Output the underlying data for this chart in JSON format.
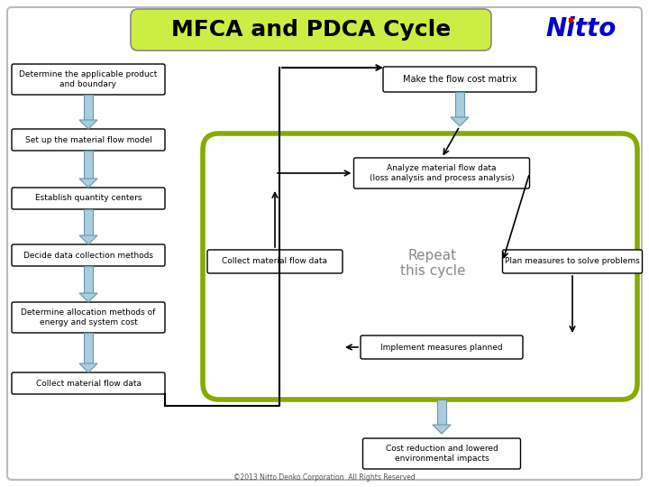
{
  "title": "MFCA and PDCA Cycle",
  "title_bg": "#ccee44",
  "title_fg": "#000000",
  "title_fontsize": 18,
  "bg_color": "#ffffff",
  "box_fill": "#ffffff",
  "box_border": "#000000",
  "arrow_fill": "#aaccdd",
  "arrow_edge": "#6699aa",
  "cycle_border": "#88aa00",
  "cycle_fill": "#ffffff",
  "left_boxes": [
    "Determine the applicable product\nand boundary",
    "Set up the material flow model",
    "Establish quantity centers",
    "Decide data collection methods",
    "Determine allocation methods of\nenergy and system cost",
    "Collect material flow data"
  ],
  "right_top_box": "Make the flow cost matrix",
  "analyze_box": "Analyze material flow data\n(loss analysis and process analysis)",
  "collect_cycle_box": "Collect material flow data",
  "plan_box": "Plan measures to solve problems",
  "implement_box": "Implement measures planned",
  "cost_box": "Cost reduction and lowered\nenvironmental impacts",
  "repeat_text": "Repeat\nthis cycle",
  "footer": "©2013 Nitto Denko Corporation  All Rights Reserved",
  "nitto_color": "#0000cc",
  "nitto_red": "#cc0000"
}
